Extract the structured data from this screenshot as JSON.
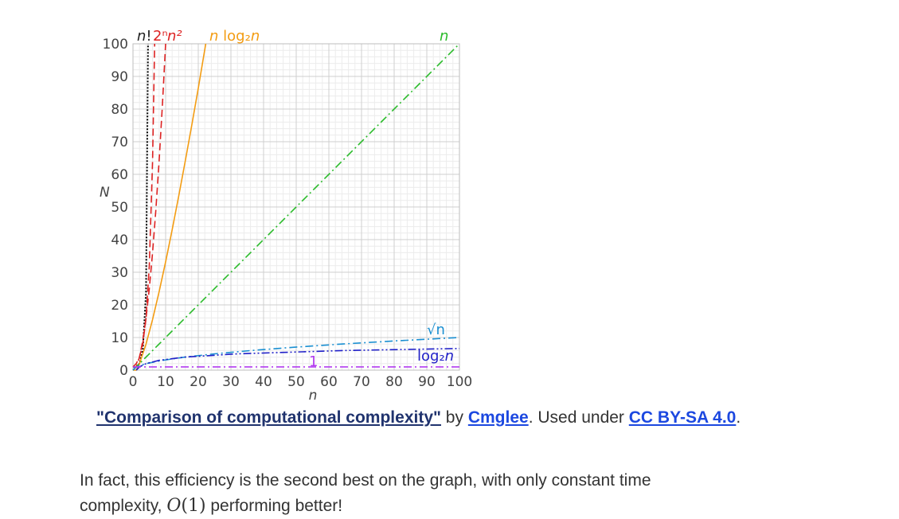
{
  "chart_data": {
    "type": "line",
    "xlabel": "n",
    "ylabel": "N",
    "xlim": [
      0,
      100
    ],
    "ylim": [
      0,
      100
    ],
    "x_ticks": [
      "0",
      "10",
      "20",
      "30",
      "40",
      "50",
      "60",
      "70",
      "80",
      "90",
      "100"
    ],
    "y_ticks": [
      "0",
      "10",
      "20",
      "30",
      "40",
      "50",
      "60",
      "70",
      "80",
      "90",
      "100"
    ],
    "grid": true,
    "series": [
      {
        "name": "n!",
        "color": "#000000",
        "style": "dotted",
        "x": [
          0,
          1,
          2,
          3,
          4,
          4.6
        ],
        "y": [
          1,
          1,
          2,
          6,
          24,
          100
        ]
      },
      {
        "name": "2ⁿ",
        "color": "#dd2222",
        "style": "dashed",
        "x": [
          0,
          1,
          2,
          3,
          4,
          5,
          6,
          6.64
        ],
        "y": [
          1,
          2,
          4,
          8,
          16,
          32,
          64,
          100
        ]
      },
      {
        "name": "n²",
        "color": "#dd2222",
        "style": "dashed",
        "x": [
          0,
          1,
          2,
          3,
          4,
          5,
          6,
          7,
          8,
          9,
          10
        ],
        "y": [
          0,
          1,
          4,
          9,
          16,
          25,
          36,
          49,
          64,
          81,
          100
        ]
      },
      {
        "name": "n log₂n",
        "color": "#f39c12",
        "style": "solid",
        "x": [
          0,
          1,
          2,
          4,
          6,
          8,
          10,
          12,
          14,
          16,
          18,
          20,
          22.3
        ],
        "y": [
          0,
          0,
          2,
          8,
          15.5,
          24,
          33.2,
          43,
          53.3,
          64,
          75,
          86.4,
          100
        ]
      },
      {
        "name": "n",
        "color": "#2bbb2b",
        "style": "dashdot",
        "x": [
          0,
          100
        ],
        "y": [
          0,
          100
        ]
      },
      {
        "name": "√n",
        "color": "#1a8fd1",
        "style": "dashdot",
        "x": [
          0,
          1,
          4,
          9,
          16,
          25,
          36,
          49,
          64,
          81,
          100
        ],
        "y": [
          0,
          1,
          2,
          3,
          4,
          5,
          6,
          7,
          8,
          9,
          10
        ]
      },
      {
        "name": "log₂n",
        "color": "#1f1fc8",
        "style": "dashdotdot",
        "x": [
          1,
          2,
          4,
          8,
          16,
          32,
          64,
          100
        ],
        "y": [
          0,
          1,
          2,
          3,
          4,
          5,
          6,
          6.64
        ]
      },
      {
        "name": "1",
        "color": "#b23cf0",
        "style": "dashdot",
        "x": [
          0,
          100
        ],
        "y": [
          1,
          1
        ]
      }
    ],
    "annotations": {
      "n_fact_prefix": "n",
      "n_fact_suffix": "!",
      "two_n": "2ⁿ",
      "n_sq": "n²",
      "nlog_n": "n",
      "nlog_log": "log₂",
      "nlog_n2": "n",
      "n": "n",
      "sqrt": "√n",
      "log_log": "log₂",
      "log_n": "n",
      "one": "1"
    }
  },
  "caption": {
    "title": "\"Comparison of computational complexity\"",
    "by": " by ",
    "author": "Cmglee",
    "used": ". Used under ",
    "license": "CC BY-SA 4.0",
    "end": "."
  },
  "paragraph": {
    "text1": "In fact, this efficiency is the second best on the graph, with only constant time complexity, ",
    "math_o": "O",
    "math_args": "(1)",
    "text2": " performing better!"
  }
}
